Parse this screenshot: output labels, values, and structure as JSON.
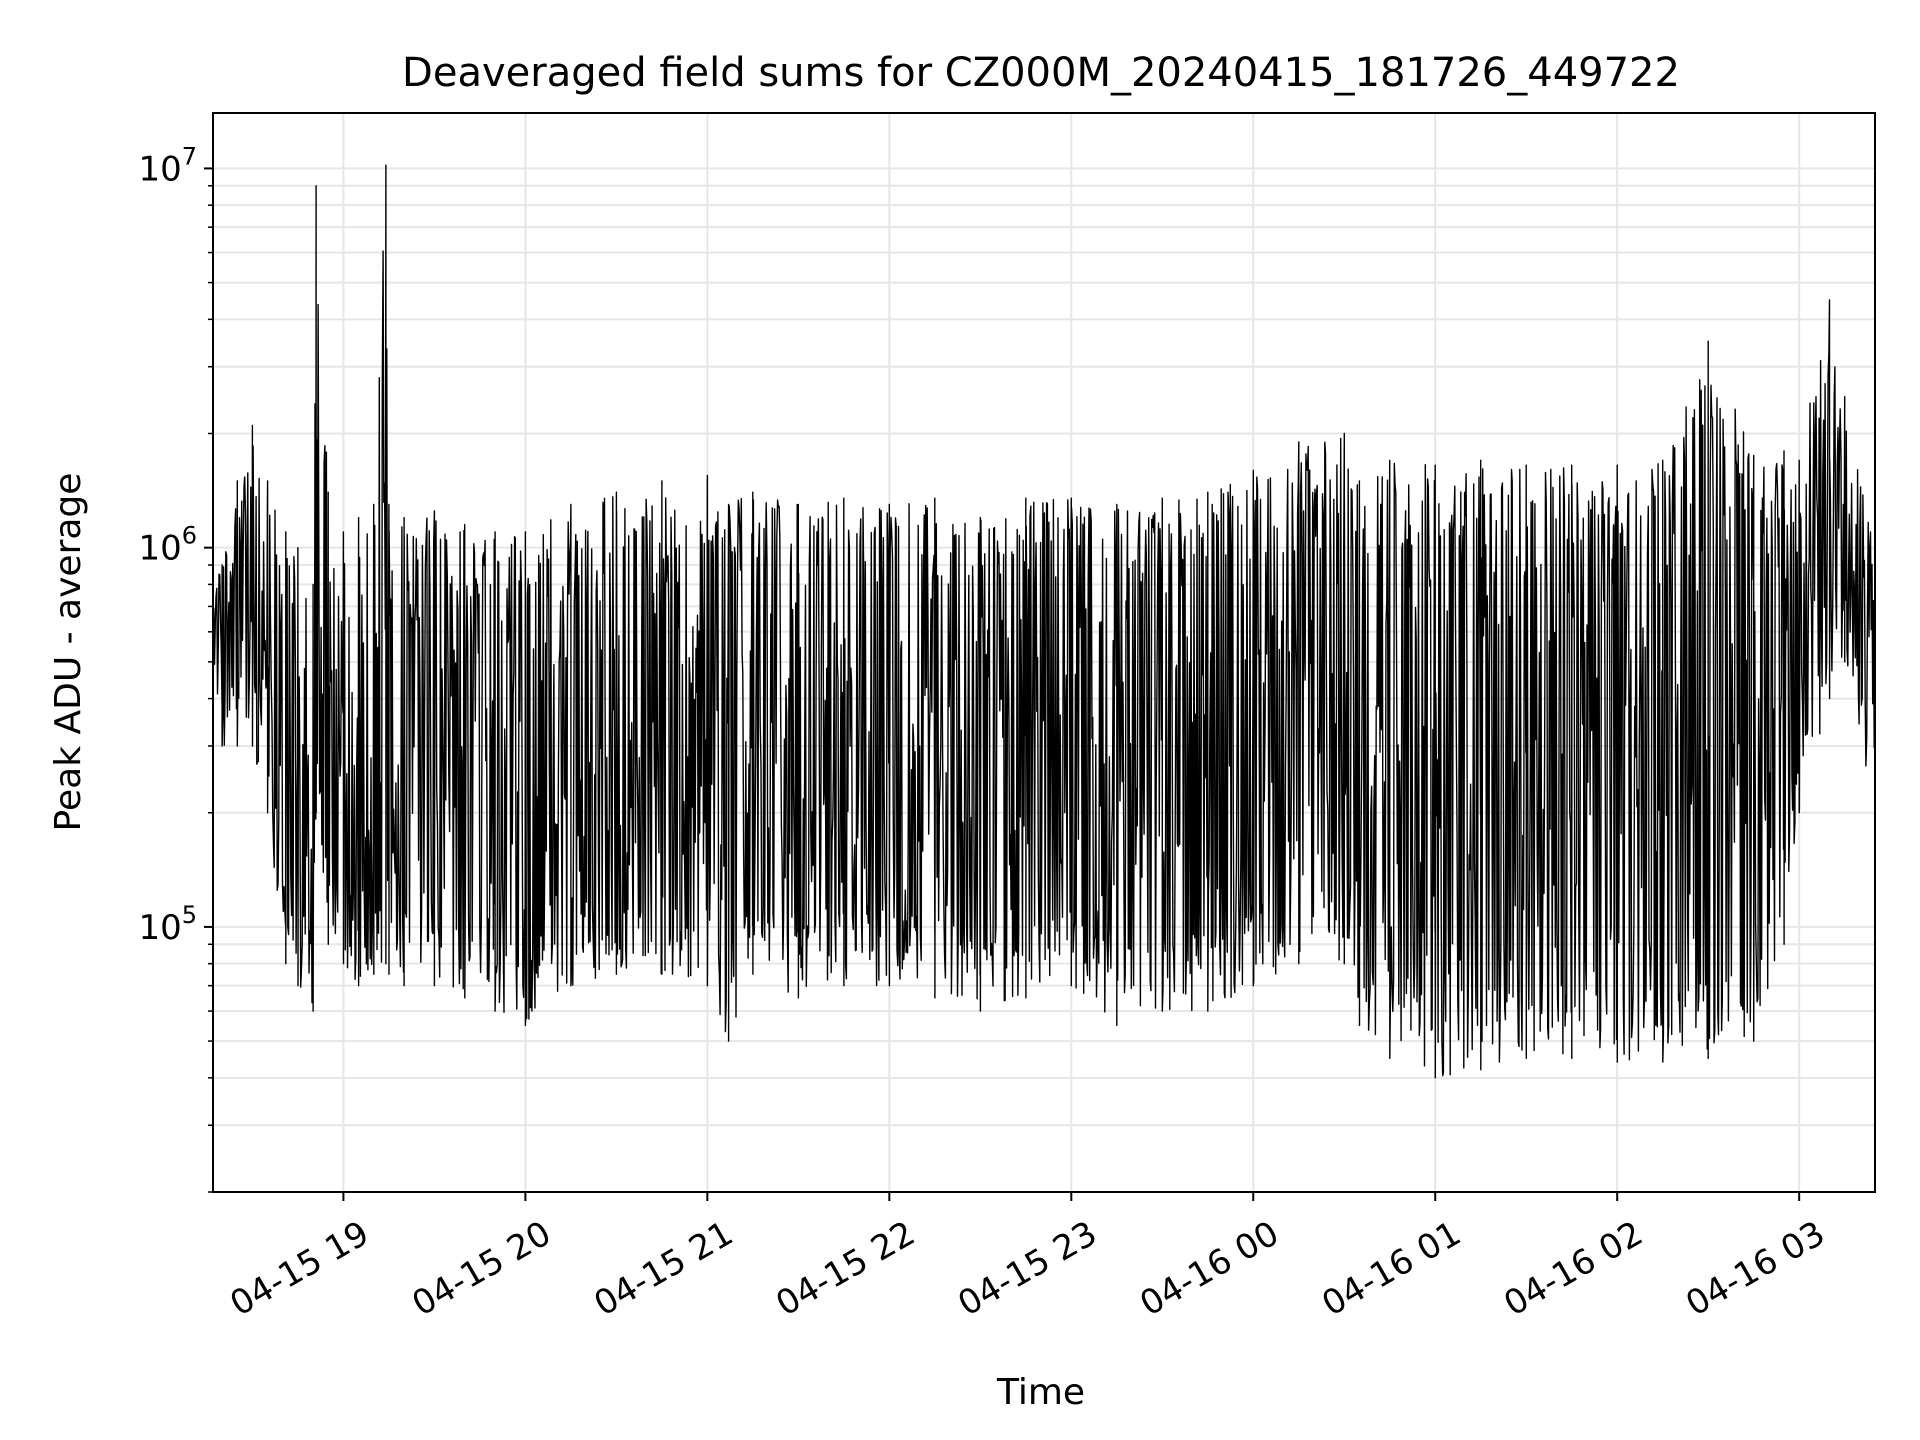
{
  "chart_data": {
    "type": "line",
    "title": "Deaveraged field sums for CZ000M_20240415_181726_449722",
    "xlabel": "Time",
    "ylabel": "Peak ADU - average",
    "yscale": "log",
    "ylim": [
      20000,
      14000000
    ],
    "xlim": [
      "2024-04-15 18:17",
      "2024-04-16 03:25"
    ],
    "grid": true,
    "x_tick_labels": [
      "04-15 19",
      "04-15 20",
      "04-15 21",
      "04-15 22",
      "04-15 23",
      "04-16 00",
      "04-16 01",
      "04-16 02",
      "04-16 03"
    ],
    "x_tick_times": [
      "2024-04-15 19:00",
      "2024-04-15 20:00",
      "2024-04-15 21:00",
      "2024-04-15 22:00",
      "2024-04-15 23:00",
      "2024-04-16 00:00",
      "2024-04-16 01:00",
      "2024-04-16 02:00",
      "2024-04-16 03:00"
    ],
    "y_ticks": [
      {
        "value": 100000,
        "base": "10",
        "exp": "5"
      },
      {
        "value": 1000000,
        "base": "10",
        "exp": "6"
      },
      {
        "value": 10000000,
        "base": "10",
        "exp": "7"
      }
    ],
    "line_color": "#000000",
    "grid_color": "#e6e6e6",
    "series": [
      {
        "x": [
          "2024-04-15 18:17",
          "2024-04-15 18:20",
          "2024-04-15 18:25",
          "2024-04-15 18:30",
          "2024-04-15 18:35",
          "2024-04-15 18:41",
          "2024-04-15 18:45",
          "2024-04-15 18:50",
          "2024-04-15 18:51",
          "2024-04-15 18:55",
          "2024-04-15 19:00",
          "2024-04-15 19:05",
          "2024-04-15 19:10",
          "2024-04-15 19:14",
          "2024-04-15 19:15",
          "2024-04-15 19:20",
          "2024-04-15 19:30",
          "2024-04-15 19:40",
          "2024-04-15 19:50",
          "2024-04-15 20:00",
          "2024-04-15 20:15",
          "2024-04-15 20:30",
          "2024-04-15 20:45",
          "2024-04-15 21:00",
          "2024-04-15 21:07",
          "2024-04-15 21:15",
          "2024-04-15 21:30",
          "2024-04-15 21:45",
          "2024-04-15 22:00",
          "2024-04-15 22:15",
          "2024-04-15 22:30",
          "2024-04-15 22:45",
          "2024-04-15 23:00",
          "2024-04-15 23:15",
          "2024-04-15 23:30",
          "2024-04-15 23:45",
          "2024-04-16 00:00",
          "2024-04-16 00:15",
          "2024-04-16 00:30",
          "2024-04-16 00:35",
          "2024-04-16 00:45",
          "2024-04-16 01:00",
          "2024-04-16 01:15",
          "2024-04-16 01:30",
          "2024-04-16 01:45",
          "2024-04-16 02:00",
          "2024-04-16 02:15",
          "2024-04-16 02:30",
          "2024-04-16 02:45",
          "2024-04-16 02:55",
          "2024-04-16 03:00",
          "2024-04-16 03:10",
          "2024-04-16 03:15",
          "2024-04-16 03:25"
        ],
        "y": [
          700000,
          600000,
          1300000,
          2000000,
          900000,
          400000,
          250000,
          180000,
          8500000,
          350000,
          200000,
          180000,
          260000,
          9800000,
          300000,
          180000,
          200000,
          220000,
          180000,
          160000,
          250000,
          350000,
          400000,
          300000,
          350000,
          250000,
          280000,
          240000,
          260000,
          250000,
          240000,
          230000,
          260000,
          250000,
          250000,
          230000,
          500000,
          600000,
          700000,
          80000,
          400000,
          380000,
          420000,
          400000,
          420000,
          350000,
          400000,
          420000,
          500000,
          800000,
          800000,
          900000,
          1000000,
          400000
        ],
        "y_low": [
          500000,
          300000,
          300000,
          300000,
          200000,
          80000,
          70000,
          60000,
          200000,
          90000,
          80000,
          70000,
          75000,
          80000,
          75000,
          70000,
          70000,
          65000,
          60000,
          55000,
          70000,
          75000,
          75000,
          70000,
          50000,
          75000,
          65000,
          70000,
          70000,
          65000,
          60000,
          65000,
          70000,
          55000,
          60000,
          60000,
          70000,
          80000,
          80000,
          55000,
          45000,
          40000,
          42000,
          45000,
          45000,
          44000,
          44000,
          45000,
          50000,
          90000,
          200000,
          400000,
          500000,
          200000
        ],
        "y_high": [
          850000,
          900000,
          1500000,
          2100000,
          1500000,
          1100000,
          1000000,
          800000,
          9000000,
          1400000,
          1100000,
          1200000,
          1300000,
          10200000,
          1300000,
          1200000,
          1250000,
          1150000,
          1100000,
          1100000,
          1300000,
          1400000,
          1500000,
          1550000,
          1300000,
          1400000,
          1300000,
          1350000,
          1300000,
          1350000,
          1200000,
          1350000,
          1350000,
          1300000,
          1350000,
          1400000,
          1600000,
          1900000,
          2000000,
          1500000,
          1700000,
          1650000,
          1700000,
          1650000,
          1650000,
          1650000,
          1700000,
          3500000,
          1750000,
          1800000,
          1700000,
          4500000,
          2500000,
          1000000
        ]
      }
    ]
  }
}
